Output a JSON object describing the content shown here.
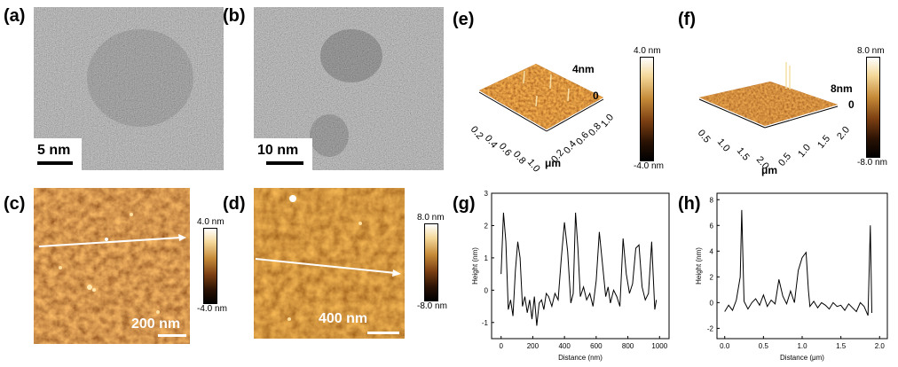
{
  "panels": {
    "a": {
      "label": "(a)",
      "scale": "5 nm"
    },
    "b": {
      "label": "(b)",
      "scale": "10 nm"
    },
    "c": {
      "label": "(c)",
      "scale": "200 nm",
      "cbar_top": "4.0 nm",
      "cbar_bottom": "-4.0 nm"
    },
    "d": {
      "label": "(d)",
      "scale": "400 nm",
      "cbar_top": "8.0 nm",
      "cbar_bottom": "-8.0 nm"
    },
    "e": {
      "label": "(e)",
      "cbar_top": "4.0 nm",
      "cbar_bottom": "-4.0 nm",
      "side_top": "4nm",
      "side_zero": "0",
      "unit": "μm",
      "axis_left": [
        "0.2",
        "0.4",
        "0.6",
        "0.8",
        "1.0"
      ],
      "axis_right": [
        "0.2",
        "0.4",
        "0.6",
        "0.8",
        "1.0"
      ]
    },
    "f": {
      "label": "(f)",
      "cbar_top": "8.0 nm",
      "cbar_bottom": "-8.0 nm",
      "side_top": "8nm",
      "side_zero": "0",
      "unit": "μm",
      "axis_left": [
        "0.5",
        "1.0",
        "1.5",
        "2.0"
      ],
      "axis_right": [
        "0.5",
        "1.0",
        "1.5",
        "2.0"
      ]
    },
    "g": {
      "label": "(g)"
    },
    "h": {
      "label": "(h)"
    }
  },
  "chart_data": [
    {
      "type": "line",
      "id": "g",
      "xlabel": "Distance (nm)",
      "ylabel": "Height (nm)",
      "xlim": [
        -60,
        1060
      ],
      "ylim": [
        -1.5,
        3.0
      ],
      "xticks": [
        "0",
        "200",
        "400",
        "600",
        "800",
        "1000"
      ],
      "yticks": [
        "-1",
        "0",
        "1",
        "2",
        "3"
      ],
      "x": [
        0,
        15,
        30,
        45,
        60,
        75,
        90,
        105,
        120,
        135,
        150,
        165,
        180,
        195,
        210,
        225,
        240,
        255,
        270,
        285,
        300,
        320,
        340,
        360,
        380,
        400,
        420,
        440,
        455,
        470,
        485,
        500,
        520,
        540,
        560,
        580,
        600,
        620,
        640,
        660,
        675,
        690,
        710,
        730,
        750,
        770,
        790,
        810,
        830,
        850,
        870,
        890,
        910,
        930,
        950,
        970,
        980
      ],
      "values": [
        0.5,
        2.4,
        1.5,
        -0.6,
        -0.3,
        -0.8,
        0.6,
        1.5,
        1.0,
        -0.5,
        -0.2,
        -0.7,
        -0.3,
        -0.9,
        -0.2,
        -1.1,
        -0.4,
        -0.3,
        -0.6,
        -0.1,
        -0.2,
        -0.5,
        -0.1,
        -0.3,
        1.0,
        2.1,
        1.2,
        -0.4,
        -0.1,
        2.4,
        1.3,
        -0.2,
        0.1,
        -0.3,
        -0.1,
        -0.5,
        0.3,
        1.8,
        0.8,
        -0.2,
        0.1,
        -0.4,
        0.0,
        -0.2,
        -0.5,
        1.6,
        0.5,
        -0.1,
        0.2,
        1.3,
        1.4,
        0.1,
        -0.3,
        -0.1,
        1.5,
        -0.6,
        -0.3
      ]
    },
    {
      "type": "line",
      "id": "h",
      "xlabel": "Distance (μm)",
      "ylabel": "Height (nm)",
      "xlim": [
        -0.1,
        2.1
      ],
      "ylim": [
        -2.8,
        8.5
      ],
      "xticks": [
        "0.0",
        "0.5",
        "1.0",
        "1.5",
        "2.0"
      ],
      "yticks": [
        "-2",
        "0",
        "2",
        "4",
        "6",
        "8"
      ],
      "x": [
        0.0,
        0.05,
        0.1,
        0.15,
        0.2,
        0.22,
        0.25,
        0.3,
        0.35,
        0.4,
        0.45,
        0.5,
        0.55,
        0.6,
        0.65,
        0.7,
        0.75,
        0.8,
        0.85,
        0.9,
        0.95,
        1.0,
        1.05,
        1.08,
        1.1,
        1.15,
        1.2,
        1.25,
        1.3,
        1.35,
        1.4,
        1.45,
        1.5,
        1.55,
        1.6,
        1.65,
        1.7,
        1.75,
        1.8,
        1.85,
        1.88,
        1.9
      ],
      "values": [
        -0.7,
        -0.2,
        -0.6,
        0.2,
        2.0,
        7.2,
        0.1,
        -0.5,
        0.0,
        0.3,
        -0.2,
        0.6,
        -0.3,
        0.2,
        -0.1,
        1.8,
        0.5,
        -0.1,
        0.9,
        0.0,
        2.5,
        3.5,
        3.9,
        1.0,
        -0.3,
        0.1,
        -0.4,
        0.0,
        -0.2,
        -0.5,
        0.0,
        -0.3,
        -0.2,
        -0.6,
        -0.1,
        -0.4,
        -0.7,
        0.0,
        -0.3,
        -1.0,
        6.0,
        -0.8
      ]
    }
  ]
}
